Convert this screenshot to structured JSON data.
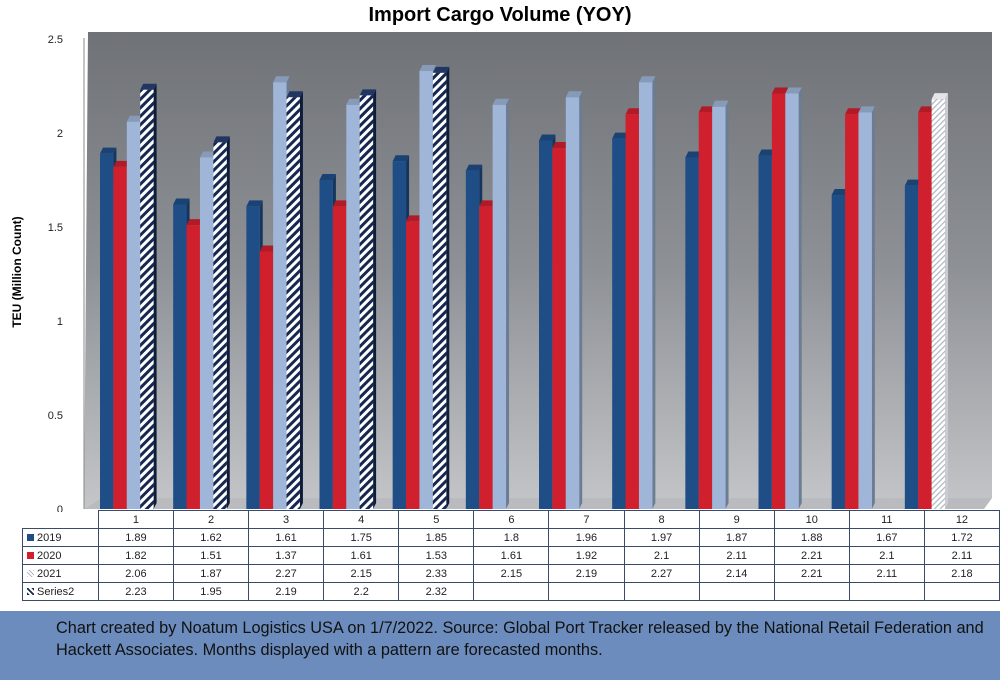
{
  "chart_data": {
    "type": "bar",
    "title": "Import Cargo Volume (YOY)",
    "xlabel": "",
    "ylabel": "TEU (Million Count)",
    "ylim": [
      0,
      2.5
    ],
    "yticks": [
      "0",
      "0.5",
      "1",
      "1.5",
      "2",
      "2.5"
    ],
    "categories": [
      "1",
      "2",
      "3",
      "4",
      "5",
      "6",
      "7",
      "8",
      "9",
      "10",
      "11",
      "12"
    ],
    "grid": false,
    "legend": "data-table",
    "series": [
      {
        "name": "2019",
        "color": "#1f4e87",
        "values": [
          1.89,
          1.62,
          1.61,
          1.75,
          1.85,
          1.8,
          1.96,
          1.97,
          1.87,
          1.88,
          1.67,
          1.72
        ],
        "labels": [
          "1.89",
          "1.62",
          "1.61",
          "1.75",
          "1.85",
          "1.8",
          "1.96",
          "1.97",
          "1.87",
          "1.88",
          "1.67",
          "1.72"
        ]
      },
      {
        "name": "2020",
        "color": "#d0202e",
        "values": [
          1.82,
          1.51,
          1.37,
          1.61,
          1.53,
          1.61,
          1.92,
          2.1,
          2.11,
          2.21,
          2.1,
          2.11
        ],
        "labels": [
          "1.82",
          "1.51",
          "1.37",
          "1.61",
          "1.53",
          "1.61",
          "1.92",
          "2.1",
          "2.11",
          "2.21",
          "2.1",
          "2.11"
        ]
      },
      {
        "name": "2021",
        "color": "#9fb6d8",
        "values": [
          2.06,
          1.87,
          2.27,
          2.15,
          2.33,
          2.15,
          2.19,
          2.27,
          2.14,
          2.21,
          2.11,
          2.18
        ],
        "labels": [
          "2.06",
          "1.87",
          "2.27",
          "2.15",
          "2.33",
          "2.15",
          "2.19",
          "2.27",
          "2.14",
          "2.21",
          "2.11",
          "2.18"
        ]
      },
      {
        "name": "Series2",
        "color": "#16284f",
        "values": [
          2.23,
          1.95,
          2.19,
          2.2,
          2.32,
          null,
          null,
          null,
          null,
          null,
          null,
          null
        ],
        "labels": [
          "2.23",
          "1.95",
          "2.19",
          "2.2",
          "2.32",
          "",
          "",
          "",
          "",
          "",
          "",
          ""
        ]
      }
    ]
  },
  "footer": {
    "note": "Chart created by Noatum Logistics USA on 1/7/2022. Source: Global Port Tracker released by the National Retail Federation and Hackett Associates. Months displayed with a pattern are forecasted months."
  }
}
